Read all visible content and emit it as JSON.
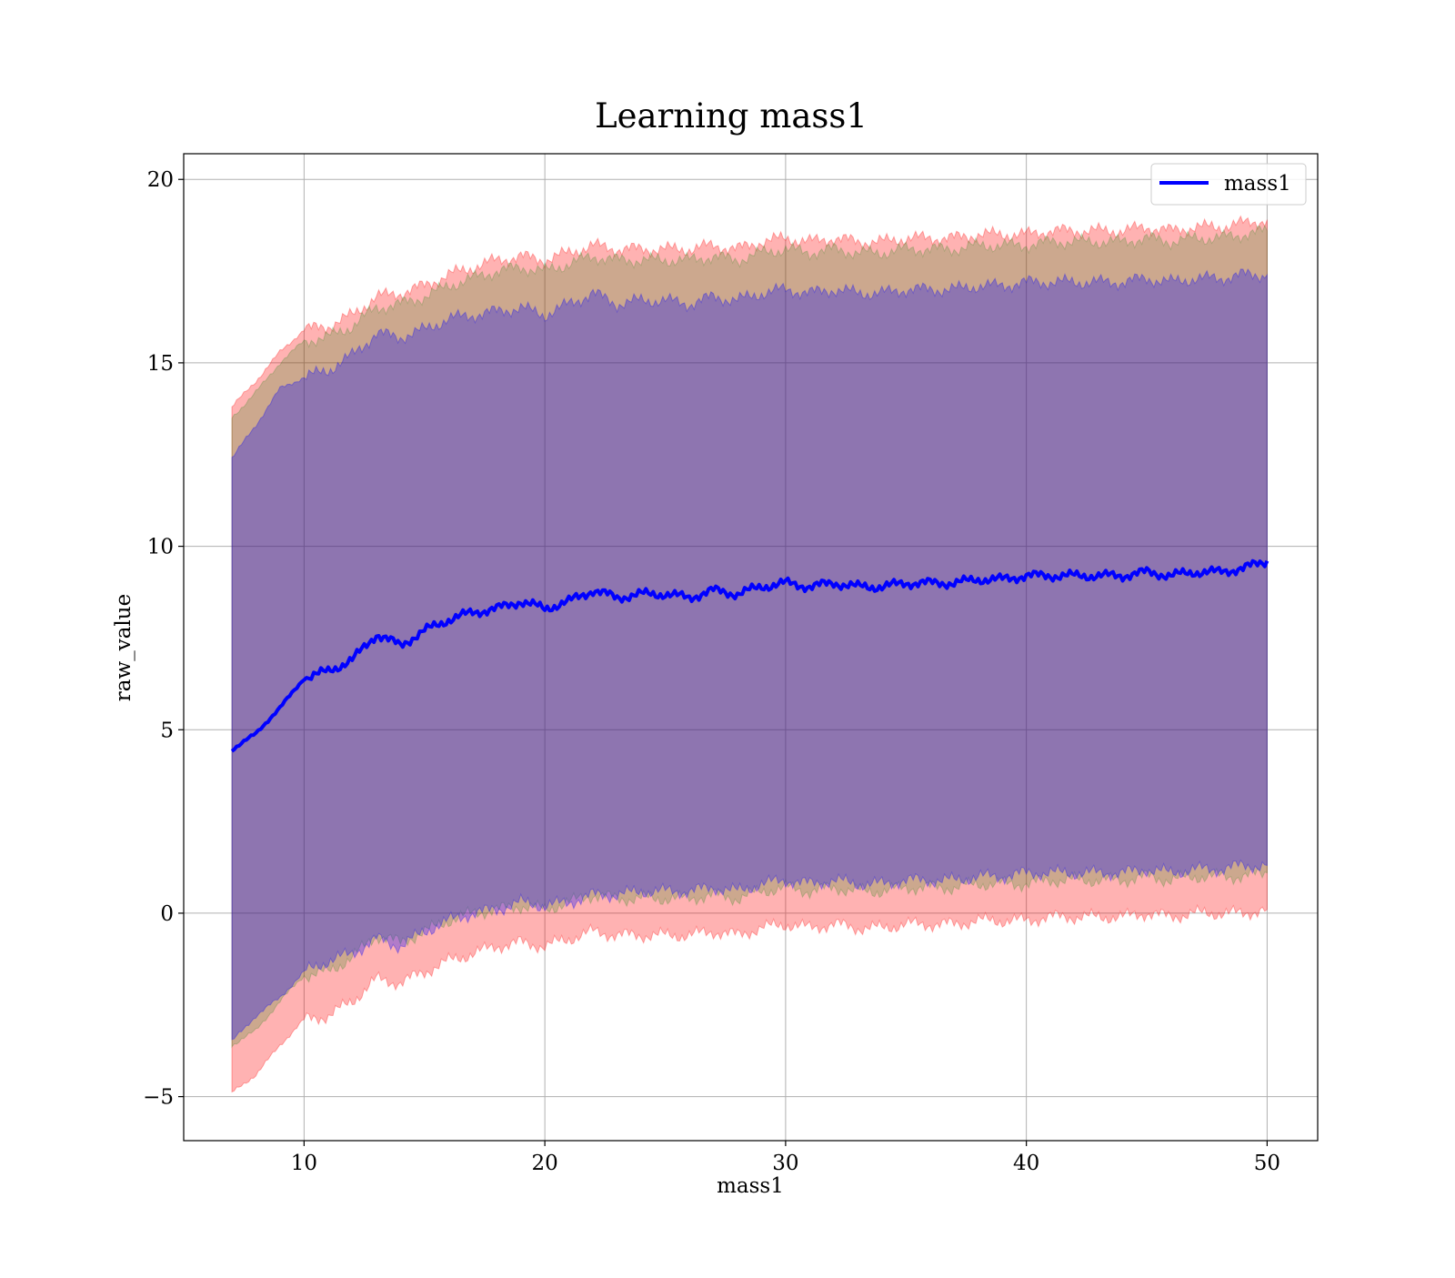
{
  "chart_data": {
    "type": "area",
    "title": "Learning mass1",
    "xlabel": "mass1",
    "ylabel": "raw_value",
    "xlim": [
      5.0,
      52.1
    ],
    "ylim": [
      -6.2,
      20.7
    ],
    "xticks": [
      10,
      20,
      30,
      40,
      50
    ],
    "yticks": [
      -5,
      0,
      5,
      10,
      15,
      20
    ],
    "xtick_labels": [
      "10",
      "20",
      "30",
      "40",
      "50"
    ],
    "ytick_labels": [
      "−5",
      "0",
      "5",
      "10",
      "15",
      "20"
    ],
    "grid": true,
    "legend_position": "top-right",
    "legend": [
      {
        "label": "mass1",
        "color": "#0000ff"
      }
    ],
    "x": [
      7,
      8,
      9,
      10,
      11,
      12,
      13,
      14,
      15,
      16,
      17,
      18,
      19,
      20,
      21,
      22,
      23,
      24,
      25,
      26,
      27,
      28,
      29,
      30,
      31,
      32,
      33,
      34,
      35,
      36,
      37,
      38,
      39,
      40,
      41,
      42,
      43,
      44,
      45,
      46,
      47,
      48,
      49,
      50
    ],
    "series": [
      {
        "name": "mass1",
        "color": "#0000ff",
        "values": [
          4.45,
          4.9,
          5.6,
          6.4,
          6.6,
          6.9,
          7.6,
          7.3,
          7.7,
          8.0,
          8.2,
          8.3,
          8.5,
          8.3,
          8.5,
          8.8,
          8.6,
          8.7,
          8.7,
          8.6,
          8.8,
          8.7,
          8.9,
          9.0,
          8.9,
          9.0,
          8.9,
          8.9,
          9.0,
          9.0,
          9.0,
          9.1,
          9.1,
          9.2,
          9.2,
          9.2,
          9.2,
          9.2,
          9.3,
          9.2,
          9.3,
          9.3,
          9.4,
          9.6
        ]
      }
    ],
    "bands": [
      {
        "color": "#ff0000",
        "opacity": 0.3,
        "upper": [
          13.8,
          14.5,
          15.3,
          15.9,
          16.0,
          16.3,
          16.8,
          16.9,
          17.1,
          17.4,
          17.6,
          17.8,
          17.9,
          17.8,
          18.0,
          18.2,
          18.1,
          18.1,
          18.1,
          18.1,
          18.2,
          18.1,
          18.3,
          18.4,
          18.3,
          18.4,
          18.3,
          18.3,
          18.4,
          18.4,
          18.4,
          18.5,
          18.5,
          18.5,
          18.6,
          18.6,
          18.6,
          18.6,
          18.7,
          18.6,
          18.7,
          18.7,
          18.8,
          18.9
        ],
        "lower": [
          -4.9,
          -4.4,
          -3.6,
          -2.9,
          -2.8,
          -2.4,
          -1.8,
          -1.9,
          -1.6,
          -1.3,
          -1.1,
          -0.9,
          -0.8,
          -0.9,
          -0.7,
          -0.5,
          -0.6,
          -0.6,
          -0.6,
          -0.6,
          -0.5,
          -0.6,
          -0.4,
          -0.3,
          -0.4,
          -0.3,
          -0.4,
          -0.4,
          -0.3,
          -0.3,
          -0.3,
          -0.2,
          -0.2,
          -0.2,
          -0.1,
          -0.1,
          -0.1,
          -0.1,
          0.0,
          -0.1,
          0.0,
          0.0,
          0.0,
          0.1
        ]
      },
      {
        "color": "#008000",
        "opacity": 0.2,
        "upper": [
          13.5,
          14.2,
          15.0,
          15.6,
          15.7,
          16.0,
          16.5,
          16.6,
          16.8,
          17.1,
          17.3,
          17.5,
          17.6,
          17.5,
          17.7,
          17.9,
          17.8,
          17.8,
          17.8,
          17.8,
          17.9,
          17.8,
          18.0,
          18.1,
          18.0,
          18.1,
          18.0,
          18.0,
          18.1,
          18.1,
          18.1,
          18.2,
          18.2,
          18.2,
          18.3,
          18.3,
          18.3,
          18.3,
          18.4,
          18.3,
          18.4,
          18.4,
          18.5,
          18.6
        ],
        "lower": [
          -3.6,
          -3.2,
          -2.4,
          -1.7,
          -1.6,
          -1.2,
          -0.6,
          -0.8,
          -0.5,
          -0.2,
          0.0,
          0.1,
          0.2,
          0.1,
          0.3,
          0.5,
          0.4,
          0.4,
          0.4,
          0.4,
          0.5,
          0.4,
          0.6,
          0.7,
          0.6,
          0.7,
          0.6,
          0.6,
          0.7,
          0.7,
          0.7,
          0.8,
          0.8,
          0.8,
          0.9,
          0.9,
          0.9,
          0.9,
          1.0,
          0.9,
          1.0,
          1.0,
          1.0,
          1.1
        ]
      },
      {
        "color": "#0000ff",
        "opacity": 0.3,
        "upper": [
          12.4,
          13.3,
          14.3,
          14.6,
          14.8,
          15.2,
          15.8,
          15.7,
          15.9,
          16.2,
          16.3,
          16.4,
          16.5,
          16.3,
          16.6,
          16.9,
          16.6,
          16.7,
          16.7,
          16.6,
          16.8,
          16.7,
          16.9,
          17.0,
          16.9,
          17.0,
          16.9,
          16.9,
          17.0,
          17.0,
          17.0,
          17.1,
          17.1,
          17.2,
          17.2,
          17.2,
          17.2,
          17.2,
          17.3,
          17.2,
          17.3,
          17.3,
          17.4,
          17.4
        ],
        "lower": [
          -3.5,
          -2.8,
          -2.3,
          -1.6,
          -1.3,
          -1.1,
          -0.7,
          -0.9,
          -0.5,
          -0.2,
          0.0,
          0.1,
          0.3,
          0.2,
          0.3,
          0.5,
          0.5,
          0.6,
          0.6,
          0.6,
          0.7,
          0.6,
          0.8,
          0.9,
          0.8,
          0.9,
          0.8,
          0.8,
          0.9,
          0.9,
          0.9,
          1.0,
          1.0,
          1.1,
          1.1,
          1.1,
          1.1,
          1.1,
          1.2,
          1.1,
          1.2,
          1.2,
          1.3,
          1.3
        ]
      }
    ]
  }
}
